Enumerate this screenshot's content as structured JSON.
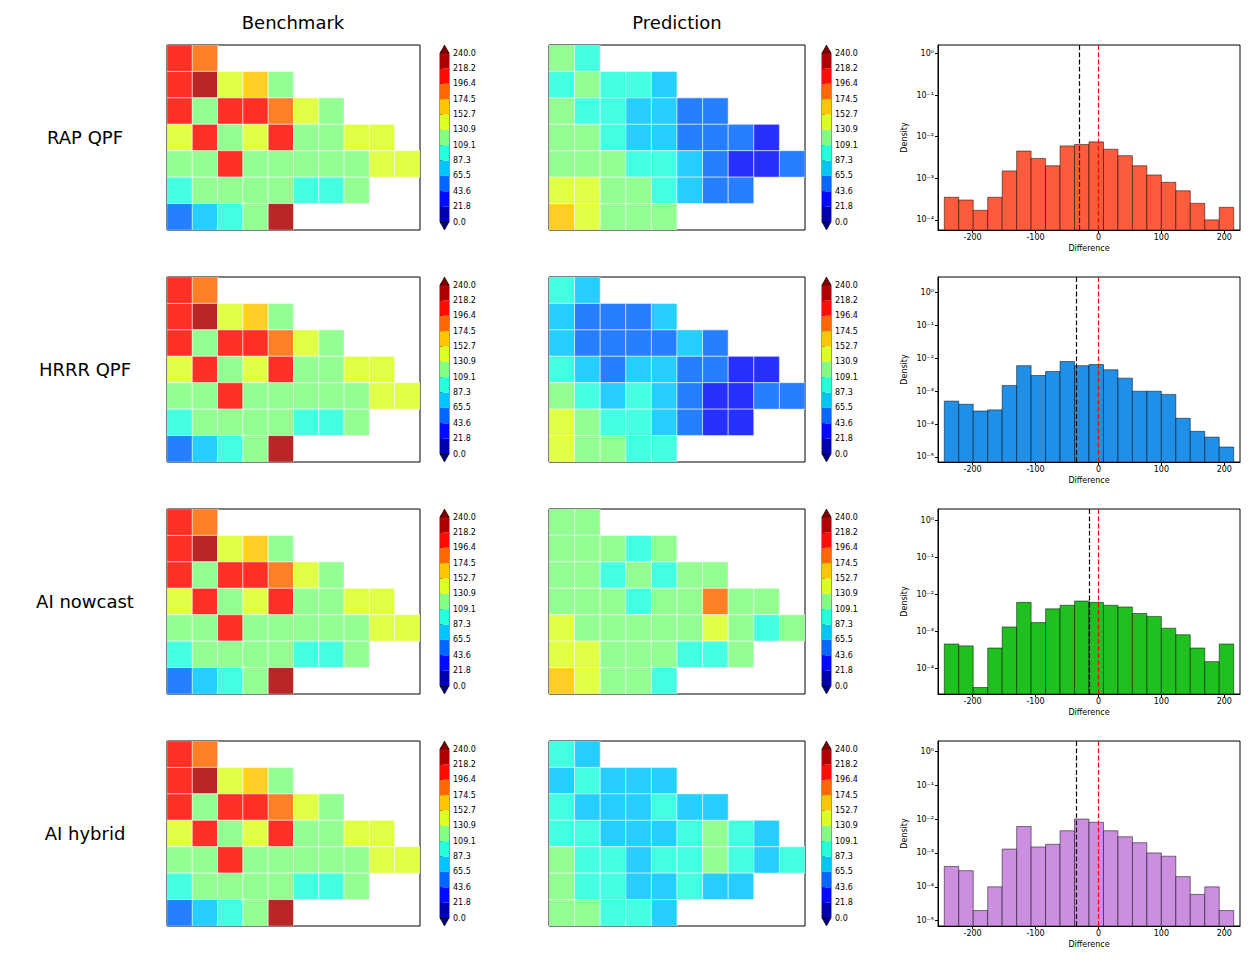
{
  "column_titles": [
    "Benchmark",
    "Prediction"
  ],
  "row_labels": [
    "RAP QPF",
    "HRRR QPF",
    "AI nowcast",
    "AI hybrid"
  ],
  "chart_data": [
    {
      "type": "map",
      "tick_labels": false,
      "cells": [
        [
          200,
          190,
          null,
          null,
          null,
          null,
          null,
          null,
          null,
          null
        ],
        [
          210,
          220,
          150,
          170,
          130,
          null,
          null,
          null,
          null,
          null
        ],
        [
          200,
          130,
          210,
          200,
          180,
          140,
          130,
          null,
          null,
          null
        ],
        [
          140,
          200,
          130,
          140,
          210,
          130,
          130,
          140,
          140,
          null
        ],
        [
          130,
          130,
          200,
          120,
          130,
          130,
          120,
          120,
          140,
          150
        ],
        [
          90,
          120,
          130,
          130,
          120,
          100,
          90,
          110,
          null,
          null
        ],
        [
          60,
          70,
          90,
          130,
          220,
          null,
          null,
          null,
          null,
          null
        ]
      ],
      "colorbar_range": [
        0,
        240
      ],
      "colorbar_ticks": [
        {
          "value": 0,
          "label": "0.0"
        },
        21.8,
        43.6,
        65.5,
        87.3,
        109.1,
        130.9,
        152.7,
        174.5,
        196.4,
        218.2,
        {
          "value": 240,
          "label": "240.0"
        }
      ]
    },
    {
      "type": "map",
      "tick_labels": false,
      "cells": [
        [
          110,
          100,
          null,
          null,
          null,
          null,
          null,
          null,
          null,
          null
        ],
        [
          100,
          120,
          90,
          100,
          80,
          null,
          null,
          null,
          null,
          null
        ],
        [
          110,
          90,
          100,
          80,
          70,
          60,
          60,
          null,
          null,
          null
        ],
        [
          120,
          110,
          90,
          80,
          70,
          60,
          50,
          50,
          40,
          null
        ],
        [
          130,
          120,
          110,
          100,
          90,
          70,
          50,
          40,
          40,
          50
        ],
        [
          150,
          140,
          120,
          110,
          100,
          80,
          60,
          50,
          null,
          null
        ],
        [
          160,
          150,
          130,
          120,
          110,
          null,
          null,
          null,
          null,
          null
        ]
      ],
      "colorbar_range": [
        0,
        240
      ],
      "colorbar_ticks": [
        {
          "value": 0,
          "label": "0.0"
        },
        21.8,
        43.6,
        65.5,
        87.3,
        109.1,
        130.9,
        152.7,
        174.5,
        196.4,
        218.2,
        {
          "value": 240,
          "label": "240.0"
        }
      ]
    },
    {
      "type": "histogram",
      "xlabel": "Difference",
      "ylabel": "Density",
      "log": "y",
      "color": "#fd5c3c",
      "bins": [
        -245,
        -222,
        -199,
        -176,
        -153,
        -130,
        -107,
        -84,
        -61,
        -38,
        -15,
        8,
        31,
        54,
        77,
        100,
        123,
        146,
        169,
        192,
        215
      ],
      "values": [
        0.00035,
        0.0003,
        0.00017,
        0.00035,
        0.0015,
        0.0045,
        0.003,
        0.002,
        0.006,
        0.0065,
        0.0075,
        0.005,
        0.0035,
        0.002,
        0.0012,
        0.0008,
        0.0005,
        0.00025,
        0.0001,
        0.0002
      ],
      "xlim": [
        -255,
        225
      ],
      "xticks": [
        -200,
        -100,
        0,
        100,
        200
      ],
      "ylim": [
        5.7e-05,
        1.6
      ],
      "yticks": [
        {
          "value": 1,
          "label": "10⁰"
        },
        {
          "value": 0.1,
          "label": "10⁻¹"
        },
        {
          "value": 0.01,
          "label": "10⁻²"
        },
        {
          "value": 0.001,
          "label": "10⁻³"
        },
        {
          "value": 0.0001,
          "label": "10⁻⁴"
        }
      ],
      "vlines": [
        {
          "x": -30,
          "color": "black",
          "line_style": "dashed"
        },
        {
          "x": 0,
          "color": "red",
          "line_style": "dashed"
        }
      ]
    },
    {
      "type": "map",
      "tick_labels": false,
      "cells": [
        [
          200,
          190,
          null,
          null,
          null,
          null,
          null,
          null,
          null,
          null
        ],
        [
          210,
          220,
          150,
          170,
          130,
          null,
          null,
          null,
          null,
          null
        ],
        [
          200,
          130,
          210,
          200,
          180,
          140,
          130,
          null,
          null,
          null
        ],
        [
          140,
          200,
          130,
          140,
          210,
          130,
          130,
          140,
          140,
          null
        ],
        [
          130,
          130,
          200,
          120,
          130,
          130,
          120,
          120,
          140,
          150
        ],
        [
          90,
          120,
          130,
          130,
          120,
          100,
          90,
          110,
          null,
          null
        ],
        [
          60,
          70,
          90,
          130,
          220,
          null,
          null,
          null,
          null,
          null
        ]
      ],
      "colorbar_range": [
        0,
        240
      ],
      "colorbar_ticks": [
        {
          "value": 0,
          "label": "0.0"
        },
        21.8,
        43.6,
        65.5,
        87.3,
        109.1,
        130.9,
        152.7,
        174.5,
        196.4,
        218.2,
        {
          "value": 240,
          "label": "240.0"
        }
      ]
    },
    {
      "type": "map",
      "tick_labels": false,
      "cells": [
        [
          90,
          80,
          null,
          null,
          null,
          null,
          null,
          null,
          null,
          null
        ],
        [
          70,
          60,
          50,
          60,
          70,
          null,
          null,
          null,
          null,
          null
        ],
        [
          80,
          60,
          60,
          50,
          60,
          70,
          50,
          null,
          null,
          null
        ],
        [
          100,
          70,
          60,
          70,
          80,
          60,
          50,
          40,
          40,
          null
        ],
        [
          120,
          90,
          80,
          90,
          80,
          60,
          40,
          40,
          50,
          60
        ],
        [
          140,
          120,
          100,
          90,
          80,
          60,
          40,
          40,
          null,
          null
        ],
        [
          150,
          130,
          110,
          100,
          90,
          null,
          null,
          null,
          null,
          null
        ]
      ],
      "colorbar_range": [
        0,
        240
      ],
      "colorbar_ticks": [
        {
          "value": 0,
          "label": "0.0"
        },
        21.8,
        43.6,
        65.5,
        87.3,
        109.1,
        130.9,
        152.7,
        174.5,
        196.4,
        218.2,
        {
          "value": 240,
          "label": "240.0"
        }
      ]
    },
    {
      "type": "histogram",
      "xlabel": "Difference",
      "ylabel": "Density",
      "log": "y",
      "color": "#1f8fe8",
      "bins": [
        -245,
        -222,
        -199,
        -176,
        -153,
        -130,
        -107,
        -84,
        -61,
        -38,
        -15,
        8,
        31,
        54,
        77,
        100,
        123,
        146,
        169,
        192,
        215
      ],
      "values": [
        0.0005,
        0.0004,
        0.00025,
        0.00027,
        0.0015,
        0.006,
        0.003,
        0.004,
        0.008,
        0.006,
        0.0065,
        0.0045,
        0.0025,
        0.001,
        0.001,
        0.0008,
        0.00015,
        6e-05,
        4e-05,
        2e-05
      ],
      "xlim": [
        -255,
        225
      ],
      "xticks": [
        -200,
        -100,
        0,
        100,
        200
      ],
      "ylim": [
        7e-06,
        3
      ],
      "yticks": [
        {
          "value": 1,
          "label": "10⁰"
        },
        {
          "value": 0.1,
          "label": "10⁻¹"
        },
        {
          "value": 0.01,
          "label": "10⁻²"
        },
        {
          "value": 0.001,
          "label": "10⁻³"
        },
        {
          "value": 0.0001,
          "label": "10⁻⁴"
        },
        {
          "value": 1e-05,
          "label": "10⁻⁵"
        }
      ],
      "vlines": [
        {
          "x": -35,
          "color": "black",
          "line_style": "dashed"
        },
        {
          "x": 0,
          "color": "red",
          "line_style": "dashed"
        }
      ]
    },
    {
      "type": "map",
      "tick_labels": false,
      "cells": [
        [
          200,
          190,
          null,
          null,
          null,
          null,
          null,
          null,
          null,
          null
        ],
        [
          210,
          220,
          150,
          170,
          130,
          null,
          null,
          null,
          null,
          null
        ],
        [
          200,
          130,
          210,
          200,
          180,
          140,
          130,
          null,
          null,
          null
        ],
        [
          140,
          200,
          130,
          140,
          210,
          130,
          130,
          140,
          140,
          null
        ],
        [
          130,
          130,
          200,
          120,
          130,
          130,
          120,
          120,
          140,
          150
        ],
        [
          90,
          120,
          130,
          130,
          120,
          100,
          90,
          110,
          null,
          null
        ],
        [
          60,
          70,
          90,
          130,
          220,
          null,
          null,
          null,
          null,
          null
        ]
      ],
      "colorbar_range": [
        0,
        240
      ],
      "colorbar_ticks": [
        {
          "value": 0,
          "label": "0.0"
        },
        21.8,
        43.6,
        65.5,
        87.3,
        109.1,
        130.9,
        152.7,
        174.5,
        196.4,
        218.2,
        {
          "value": 240,
          "label": "240.0"
        }
      ]
    },
    {
      "type": "map",
      "tick_labels": false,
      "cells": [
        [
          120,
          110,
          null,
          null,
          null,
          null,
          null,
          null,
          null,
          null
        ],
        [
          110,
          120,
          110,
          100,
          110,
          null,
          null,
          null,
          null,
          null
        ],
        [
          120,
          110,
          100,
          110,
          100,
          110,
          120,
          null,
          null,
          null
        ],
        [
          130,
          120,
          110,
          100,
          110,
          120,
          180,
          130,
          110,
          null
        ],
        [
          140,
          130,
          120,
          110,
          120,
          130,
          140,
          120,
          100,
          110
        ],
        [
          150,
          140,
          120,
          110,
          110,
          100,
          100,
          110,
          null,
          null
        ],
        [
          160,
          150,
          130,
          110,
          100,
          null,
          null,
          null,
          null,
          null
        ]
      ],
      "colorbar_range": [
        0,
        240
      ],
      "colorbar_ticks": [
        {
          "value": 0,
          "label": "0.0"
        },
        21.8,
        43.6,
        65.5,
        87.3,
        109.1,
        130.9,
        152.7,
        174.5,
        196.4,
        218.2,
        {
          "value": 240,
          "label": "240.0"
        }
      ]
    },
    {
      "type": "histogram",
      "xlabel": "Difference",
      "ylabel": "Density",
      "log": "y",
      "color": "#21c021",
      "bins": [
        -245,
        -222,
        -199,
        -176,
        -153,
        -130,
        -107,
        -84,
        -61,
        -38,
        -15,
        8,
        31,
        54,
        77,
        100,
        123,
        146,
        169,
        192,
        215
      ],
      "values": [
        0.00045,
        0.0004,
        3e-05,
        0.00035,
        0.0013,
        0.006,
        0.0017,
        0.004,
        0.005,
        0.0065,
        0.006,
        0.005,
        0.0045,
        0.003,
        0.0025,
        0.0012,
        0.0008,
        0.00035,
        0.00015,
        0.00045
      ],
      "xlim": [
        -255,
        225
      ],
      "xticks": [
        -200,
        -100,
        0,
        100,
        200
      ],
      "ylim": [
        2e-05,
        2
      ],
      "yticks": [
        {
          "value": 1,
          "label": "10⁰"
        },
        {
          "value": 0.1,
          "label": "10⁻¹"
        },
        {
          "value": 0.01,
          "label": "10⁻²"
        },
        {
          "value": 0.001,
          "label": "10⁻³"
        },
        {
          "value": 0.0001,
          "label": "10⁻⁴"
        }
      ],
      "vlines": [
        {
          "x": -15,
          "color": "black",
          "line_style": "dashed"
        },
        {
          "x": 0,
          "color": "red",
          "line_style": "dashed"
        }
      ]
    },
    {
      "type": "map",
      "tick_labels": false,
      "cells": [
        [
          200,
          190,
          null,
          null,
          null,
          null,
          null,
          null,
          null,
          null
        ],
        [
          210,
          220,
          150,
          170,
          130,
          null,
          null,
          null,
          null,
          null
        ],
        [
          200,
          130,
          210,
          200,
          180,
          140,
          130,
          null,
          null,
          null
        ],
        [
          140,
          200,
          130,
          140,
          210,
          130,
          130,
          140,
          140,
          null
        ],
        [
          130,
          130,
          200,
          120,
          130,
          130,
          120,
          120,
          140,
          150
        ],
        [
          90,
          120,
          130,
          130,
          120,
          100,
          90,
          110,
          null,
          null
        ],
        [
          60,
          70,
          90,
          130,
          220,
          null,
          null,
          null,
          null,
          null
        ]
      ],
      "colorbar_range": [
        0,
        240
      ],
      "colorbar_ticks": [
        {
          "value": 0,
          "label": "0.0"
        },
        21.8,
        43.6,
        65.5,
        87.3,
        109.1,
        130.9,
        152.7,
        174.5,
        196.4,
        218.2,
        {
          "value": 240,
          "label": "240.0"
        }
      ]
    },
    {
      "type": "map",
      "tick_labels": false,
      "cells": [
        [
          90,
          80,
          null,
          null,
          null,
          null,
          null,
          null,
          null,
          null
        ],
        [
          80,
          90,
          80,
          70,
          80,
          null,
          null,
          null,
          null,
          null
        ],
        [
          90,
          80,
          70,
          80,
          90,
          80,
          70,
          null,
          null,
          null
        ],
        [
          100,
          90,
          80,
          70,
          80,
          100,
          120,
          90,
          80,
          null
        ],
        [
          110,
          100,
          90,
          80,
          90,
          100,
          110,
          90,
          80,
          90
        ],
        [
          110,
          100,
          90,
          80,
          80,
          90,
          80,
          80,
          null,
          null
        ],
        [
          120,
          110,
          100,
          90,
          80,
          null,
          null,
          null,
          null,
          null
        ]
      ],
      "colorbar_range": [
        0,
        240
      ],
      "colorbar_ticks": [
        {
          "value": 0,
          "label": "0.0"
        },
        21.8,
        43.6,
        65.5,
        87.3,
        109.1,
        130.9,
        152.7,
        174.5,
        196.4,
        218.2,
        {
          "value": 240,
          "label": "240.0"
        }
      ]
    },
    {
      "type": "histogram",
      "xlabel": "Difference",
      "ylabel": "Density",
      "log": "y",
      "color": "#cc8fe0",
      "bins": [
        -245,
        -222,
        -199,
        -176,
        -153,
        -130,
        -107,
        -84,
        -61,
        -38,
        -15,
        8,
        31,
        54,
        77,
        100,
        123,
        146,
        169,
        192,
        215
      ],
      "values": [
        0.0004,
        0.0003,
        2e-05,
        0.0001,
        0.0013,
        0.006,
        0.0015,
        0.0018,
        0.0045,
        0.01,
        0.008,
        0.0045,
        0.003,
        0.002,
        0.001,
        0.0008,
        0.0002,
        6e-05,
        0.0001,
        2e-05
      ],
      "xlim": [
        -255,
        225
      ],
      "xticks": [
        -200,
        -100,
        0,
        100,
        200
      ],
      "ylim": [
        7e-06,
        2
      ],
      "yticks": [
        {
          "value": 1,
          "label": "10⁰"
        },
        {
          "value": 0.1,
          "label": "10⁻¹"
        },
        {
          "value": 0.01,
          "label": "10⁻²"
        },
        {
          "value": 0.001,
          "label": "10⁻³"
        },
        {
          "value": 0.0001,
          "label": "10⁻⁴"
        },
        {
          "value": 1e-05,
          "label": "10⁻⁵"
        }
      ],
      "vlines": [
        {
          "x": -35,
          "color": "black",
          "line_style": "dashed"
        },
        {
          "x": 0,
          "color": "red",
          "line_style": "dashed"
        }
      ]
    }
  ]
}
